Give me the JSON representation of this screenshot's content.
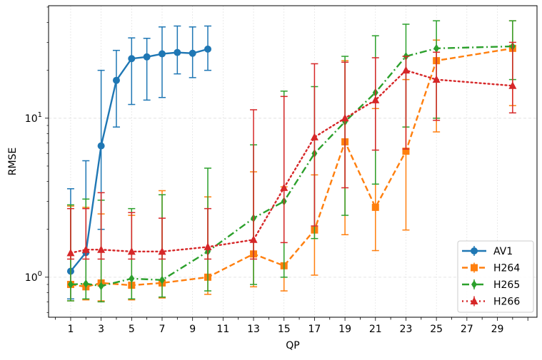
{
  "chart_data": {
    "type": "line",
    "title": "",
    "xlabel": "QP",
    "ylabel": "RMSE",
    "yscale": "log",
    "xlim": [
      -0.45,
      31.6
    ],
    "ylim": [
      0.56,
      51
    ],
    "xticks": [
      1,
      3,
      5,
      7,
      9,
      11,
      13,
      15,
      17,
      19,
      21,
      23,
      25,
      27,
      29
    ],
    "yticks": [
      {
        "value": 1,
        "label": "10^0"
      },
      {
        "value": 10,
        "label": "10^1"
      }
    ],
    "grid": true,
    "legend_position": "lower-right",
    "series": [
      {
        "name": "AV1",
        "color": "#1f77b4",
        "dash": "solid",
        "marker": "circle",
        "x": [
          1,
          2,
          3,
          4,
          5,
          6,
          7,
          8,
          9,
          10
        ],
        "y": [
          1.09,
          1.43,
          6.7,
          17.3,
          23.7,
          24.3,
          25.4,
          25.9,
          25.6,
          27.2
        ],
        "lo": [
          0.73,
          0.9,
          2.0,
          8.8,
          12.2,
          13,
          13.5,
          19,
          18,
          20
        ],
        "hi": [
          3.6,
          5.4,
          20,
          26.7,
          32,
          31.8,
          37.5,
          38,
          37.5,
          38
        ]
      },
      {
        "name": "H264",
        "color": "#ff7f0e",
        "dash": "dashed",
        "marker": "square",
        "x": [
          1,
          2,
          3,
          5,
          7,
          10,
          13,
          15,
          17,
          19,
          21,
          23,
          25,
          30
        ],
        "y": [
          0.9,
          0.87,
          0.92,
          0.89,
          0.92,
          1.0,
          1.4,
          1.18,
          1.98,
          7.1,
          2.75,
          6.2,
          23,
          27.5
        ],
        "lo": [
          0.71,
          0.72,
          0.71,
          0.72,
          0.74,
          0.78,
          0.87,
          0.82,
          1.03,
          1.85,
          1.47,
          1.98,
          8.2,
          12
        ],
        "hi": [
          2.8,
          2.75,
          2.5,
          2.45,
          3.5,
          3.2,
          4.6,
          3.7,
          4.4,
          23,
          11.5,
          17.5,
          31,
          41
        ]
      },
      {
        "name": "H265",
        "color": "#2ca02c",
        "dash": "dashdot",
        "marker": "diamond",
        "x": [
          1,
          2,
          3,
          5,
          7,
          10,
          13,
          15,
          17,
          19,
          21,
          23,
          25,
          30
        ],
        "y": [
          0.9,
          0.91,
          0.88,
          0.98,
          0.96,
          1.45,
          2.35,
          3.0,
          6.0,
          9.5,
          14.5,
          24.5,
          27.5,
          28.3
        ],
        "lo": [
          0.71,
          0.73,
          0.7,
          0.73,
          0.75,
          0.82,
          0.9,
          1.0,
          1.75,
          2.45,
          3.85,
          8.8,
          10,
          17.5
        ],
        "hi": [
          2.85,
          3.1,
          3.05,
          2.7,
          3.3,
          4.85,
          6.8,
          14.8,
          15.8,
          24.5,
          33,
          39,
          41,
          41
        ]
      },
      {
        "name": "H266",
        "color": "#d62728",
        "dash": "dotted",
        "marker": "triangle",
        "x": [
          1,
          2,
          3,
          5,
          7,
          10,
          13,
          15,
          17,
          19,
          21,
          23,
          25,
          30
        ],
        "y": [
          1.42,
          1.49,
          1.49,
          1.45,
          1.45,
          1.55,
          1.72,
          3.65,
          7.6,
          10,
          13,
          20,
          17.5,
          16
        ],
        "lo": [
          1.3,
          1.3,
          1.3,
          1.3,
          1.3,
          1.3,
          1.3,
          1.65,
          2.1,
          3.65,
          6.3,
          6.4,
          9.7,
          10.8
        ],
        "hi": [
          2.7,
          2.7,
          3.4,
          2.55,
          2.35,
          2.7,
          11.3,
          13.7,
          22,
          22.5,
          24,
          24.5,
          26,
          30
        ]
      }
    ]
  }
}
